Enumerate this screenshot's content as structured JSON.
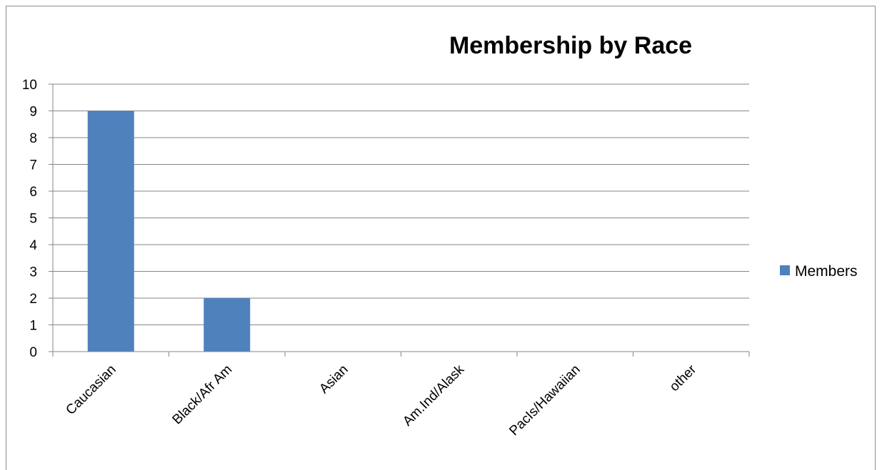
{
  "chart_data": {
    "type": "bar",
    "title": "Membership by Race",
    "xlabel": "",
    "ylabel": "",
    "categories": [
      "Caucasian",
      "Black/Afr Am",
      "Asian",
      "Am.Ind/Alask",
      "PacIs/Hawaiian",
      "other"
    ],
    "series": [
      {
        "name": "Members",
        "values": [
          9,
          2,
          0,
          0,
          0,
          0
        ],
        "color": "#4f81bd"
      }
    ],
    "ylim": [
      0,
      10
    ],
    "yticks": [
      "0",
      "1",
      "2",
      "3",
      "4",
      "5",
      "6",
      "7",
      "8",
      "9",
      "10"
    ],
    "grid": true,
    "legend_position": "right"
  }
}
